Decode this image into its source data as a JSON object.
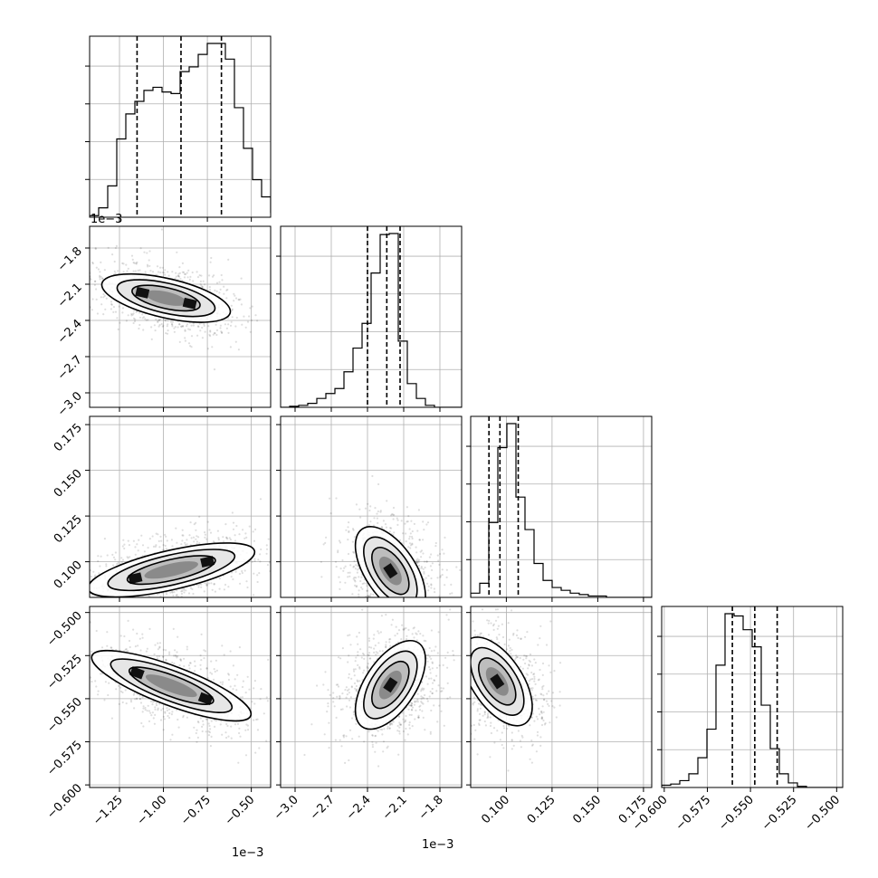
{
  "figure": {
    "type": "corner_plot"
  },
  "chart_data": {
    "type": "corner",
    "n_params": 4,
    "grid": true,
    "params": [
      {
        "id": "p0",
        "range": [
          -1.42,
          -0.39
        ],
        "ticks": [
          -1.25,
          -1.0,
          -0.75,
          -0.5
        ],
        "tick_labels": [
          "−1.25",
          "−1.00",
          "−0.75",
          "−0.50"
        ],
        "offset_label": "1e−3",
        "quantiles": [
          -1.15,
          -0.9,
          -0.67
        ]
      },
      {
        "id": "p1",
        "range": [
          -3.12,
          -1.62
        ],
        "ticks": [
          -3.0,
          -2.7,
          -2.4,
          -2.1,
          -1.8
        ],
        "tick_labels": [
          "−3.0",
          "−2.7",
          "−2.4",
          "−2.1",
          "−1.8"
        ],
        "offset_label": "1e−3",
        "quantiles": [
          -2.4,
          -2.24,
          -2.13
        ]
      },
      {
        "id": "p2",
        "range": [
          0.0805,
          0.1795
        ],
        "ticks": [
          0.1,
          0.125,
          0.15,
          0.175
        ],
        "tick_labels": [
          "0.100",
          "0.125",
          "0.150",
          "0.175"
        ],
        "offset_label": "",
        "quantiles": [
          0.0905,
          0.0965,
          0.1065
        ]
      },
      {
        "id": "p3",
        "range": [
          -0.6015,
          -0.4965
        ],
        "ticks": [
          -0.6,
          -0.575,
          -0.55,
          -0.525,
          -0.5
        ],
        "tick_labels": [
          "−0.600",
          "−0.575",
          "−0.550",
          "−0.525",
          "−0.500"
        ],
        "offset_label": "",
        "quantiles": [
          -0.5605,
          -0.5475,
          -0.5345
        ]
      }
    ],
    "histograms": [
      {
        "param": "p0",
        "edges_start": -1.42,
        "bin_width": 0.0515,
        "counts": [
          1,
          6,
          20,
          50,
          66,
          74,
          81,
          83,
          80,
          79,
          93,
          96,
          104,
          111,
          111,
          101,
          70,
          44,
          24,
          13,
          3,
          1
        ]
      },
      {
        "param": "p1",
        "edges_start": -3.12,
        "bin_width": 0.075,
        "counts": [
          0,
          1,
          2,
          4,
          9,
          14,
          19,
          36,
          60,
          85,
          136,
          175,
          176,
          67,
          24,
          9,
          2,
          0,
          0,
          0
        ]
      },
      {
        "param": "p2",
        "edges_start": 0.0805,
        "bin_width": 0.00495,
        "counts": [
          3,
          10,
          53,
          106,
          123,
          71,
          48,
          24,
          12,
          7,
          5,
          3,
          2,
          1,
          1,
          0,
          0,
          0,
          0,
          0
        ]
      },
      {
        "param": "p3",
        "edges_start": -0.6015,
        "bin_width": 0.00525,
        "counts": [
          2,
          3,
          6,
          12,
          26,
          51,
          107,
          152,
          150,
          138,
          123,
          72,
          34,
          12,
          4,
          1,
          0,
          0,
          0,
          0
        ]
      }
    ],
    "pairs": [
      {
        "x": "p0",
        "y": "p1",
        "correlation": -0.85,
        "modes": [
          [
            -1.12,
            -2.17
          ],
          [
            -0.85,
            -2.26
          ]
        ]
      },
      {
        "x": "p0",
        "y": "p2",
        "correlation": 0.85,
        "modes": [
          [
            -1.16,
            0.091
          ],
          [
            -0.75,
            0.1
          ]
        ]
      },
      {
        "x": "p1",
        "y": "p2",
        "correlation": -0.75,
        "modes": [
          [
            -2.21,
            0.095
          ]
        ]
      },
      {
        "x": "p0",
        "y": "p3",
        "correlation": -0.85,
        "modes": [
          [
            -1.15,
            -0.535
          ],
          [
            -0.76,
            -0.55
          ]
        ]
      },
      {
        "x": "p1",
        "y": "p3",
        "correlation": 0.8,
        "modes": [
          [
            -2.21,
            -0.542
          ]
        ]
      },
      {
        "x": "p2",
        "y": "p3",
        "correlation": -0.75,
        "modes": [
          [
            0.095,
            -0.54
          ]
        ]
      }
    ]
  }
}
